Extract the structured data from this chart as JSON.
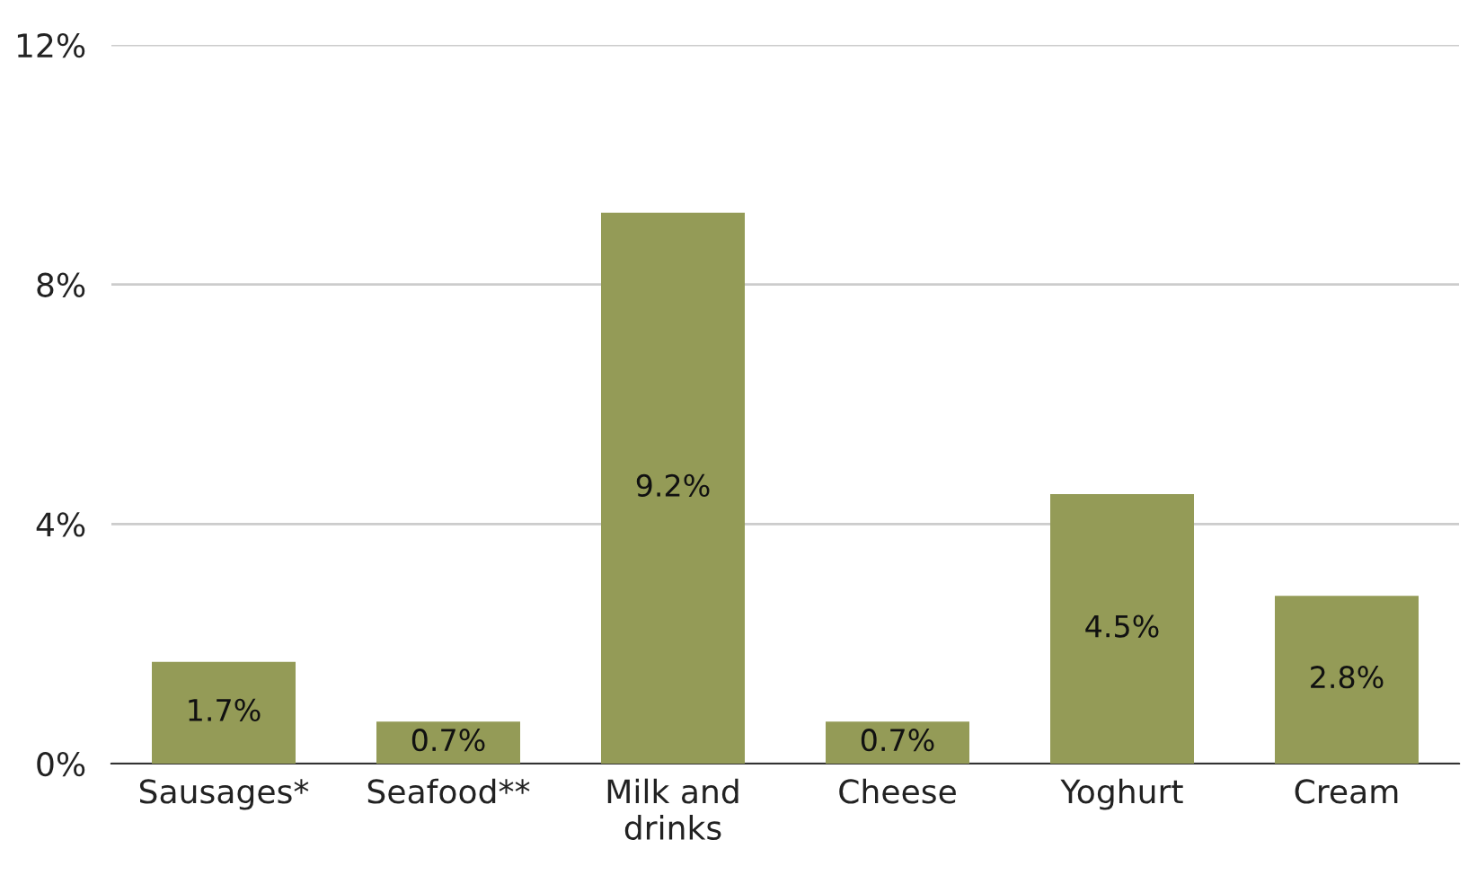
{
  "chart_data": {
    "type": "bar",
    "categories": [
      "Sausages*",
      "Seafood**",
      "Milk and\ndrinks",
      "Cheese",
      "Yoghurt",
      "Cream"
    ],
    "values": [
      1.7,
      0.7,
      9.2,
      0.7,
      4.5,
      2.8
    ],
    "value_labels": [
      "1.7%",
      "0.7%",
      "9.2%",
      "0.7%",
      "4.5%",
      "2.8%"
    ],
    "color": "#949b57",
    "ylim": [
      0,
      12
    ],
    "yticks": [
      {
        "value": 0,
        "label": "0%"
      },
      {
        "value": 4,
        "label": "4%"
      },
      {
        "value": 8,
        "label": "8%"
      },
      {
        "value": 12,
        "label": "12%"
      }
    ],
    "grid": "y"
  }
}
